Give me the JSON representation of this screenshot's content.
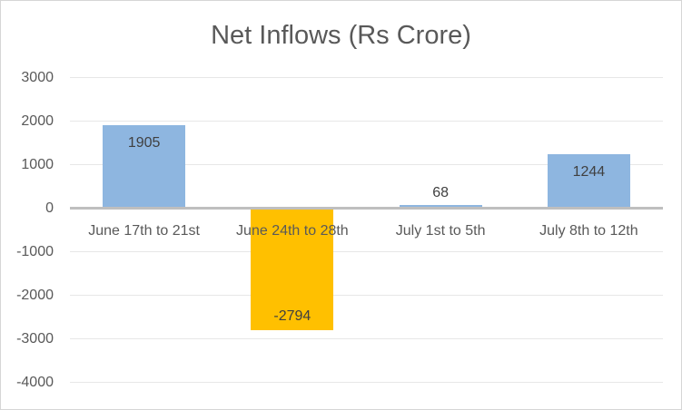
{
  "chart_data": {
    "type": "bar",
    "title": "Net Inflows (Rs Crore)",
    "categories": [
      "June 17th to 21st",
      "June 24th to 28th",
      "July 1st to 5th",
      "July 8th to 12th"
    ],
    "values": [
      1905,
      -2794,
      68,
      1244
    ],
    "data_labels": [
      "1905",
      "-2794",
      "68",
      "1244"
    ],
    "bar_colors": [
      "#8EB6E0",
      "#FFC000",
      "#8EB6E0",
      "#8EB6E0"
    ],
    "y_ticks": [
      3000,
      2000,
      1000,
      0,
      -1000,
      -2000,
      -3000,
      -4000
    ],
    "ylim": [
      -4000,
      3000
    ],
    "xlabel": "",
    "ylabel": "",
    "grid": true,
    "legend": false
  },
  "colors": {
    "title_text": "#595959",
    "axis_text": "#595959",
    "data_label_text": "#404040",
    "gridline": "#E7E7E7",
    "zero_line": "#BFBFBF",
    "border": "#D6D6D6",
    "background": "#FFFFFF",
    "bar_blue": "#8EB6E0",
    "bar_orange": "#FFC000"
  }
}
